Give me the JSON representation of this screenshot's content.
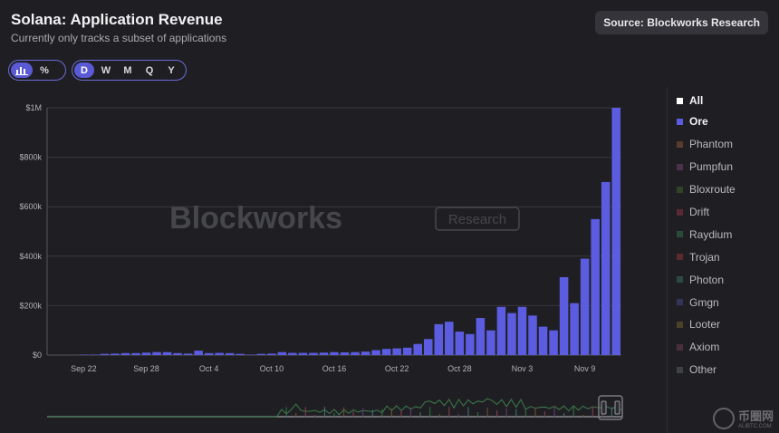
{
  "header": {
    "title": "Solana: Application Revenue",
    "subtitle": "Currently only tracks a subset of applications",
    "source_label": "Source: Blockworks Research"
  },
  "toolbar": {
    "chart_modes": [
      {
        "name": "bar-chart-icon",
        "label": "",
        "active": true
      },
      {
        "name": "percent-icon",
        "label": "%",
        "active": false
      }
    ],
    "periods": [
      {
        "label": "D",
        "active": true
      },
      {
        "label": "W",
        "active": false
      },
      {
        "label": "M",
        "active": false
      },
      {
        "label": "Q",
        "active": false
      },
      {
        "label": "Y",
        "active": false
      }
    ]
  },
  "watermark": {
    "brand": "Blockworks",
    "tag": "Research"
  },
  "legend": [
    {
      "label": "All",
      "color": "#ffffff"
    },
    {
      "label": "Ore",
      "color": "#5c5ce0"
    },
    {
      "label": "Phantom",
      "color": "#5a3c2c"
    },
    {
      "label": "Pumpfun",
      "color": "#4c3048"
    },
    {
      "label": "Bloxroute",
      "color": "#2e4424"
    },
    {
      "label": "Drift",
      "color": "#5a2a34"
    },
    {
      "label": "Raydium",
      "color": "#2a4a3c"
    },
    {
      "label": "Trojan",
      "color": "#5a2a2e"
    },
    {
      "label": "Photon",
      "color": "#2c4a40"
    },
    {
      "label": "Gmgn",
      "color": "#34345a"
    },
    {
      "label": "Looter",
      "color": "#4a4228"
    },
    {
      "label": "Axiom",
      "color": "#4a2e3a"
    },
    {
      "label": "Other",
      "color": "#3e4244"
    }
  ],
  "corner_mark": {
    "text": "币圈网",
    "sub": "ALIBTC.COM"
  },
  "chart_data": {
    "type": "bar",
    "title": "Solana: Application Revenue",
    "series": [
      {
        "name": "Ore",
        "color": "#5c5ce0",
        "values": [
          0,
          0,
          0,
          2000,
          2000,
          5000,
          6000,
          8000,
          8000,
          10000,
          12000,
          12000,
          8000,
          6000,
          18000,
          8000,
          9000,
          8000,
          5000,
          2000,
          5000,
          6000,
          12000,
          9000,
          9000,
          9000,
          10000,
          12000,
          11000,
          12000,
          14000,
          20000,
          25000,
          27000,
          30000,
          45000,
          65000,
          125000,
          135000,
          95000,
          85000,
          150000,
          100000,
          195000,
          170000,
          195000,
          160000,
          115000,
          100000,
          315000,
          210000,
          390000,
          550000,
          700000,
          1000000
        ]
      }
    ],
    "x_ticks": [
      "Sep 22",
      "Sep 28",
      "Oct 4",
      "Oct 10",
      "Oct 16",
      "Oct 22",
      "Oct 28",
      "Nov 3",
      "Nov 9"
    ],
    "x_tick_index": [
      3,
      9,
      15,
      21,
      27,
      33,
      39,
      45,
      51
    ],
    "y_ticks": [
      "$0",
      "$200k",
      "$400k",
      "$600k",
      "$800k",
      "$1M"
    ],
    "y_tick_values": [
      0,
      200000,
      400000,
      600000,
      800000,
      1000000
    ],
    "ylim": [
      0,
      1000000
    ],
    "grid": true,
    "legend_position": "right"
  }
}
